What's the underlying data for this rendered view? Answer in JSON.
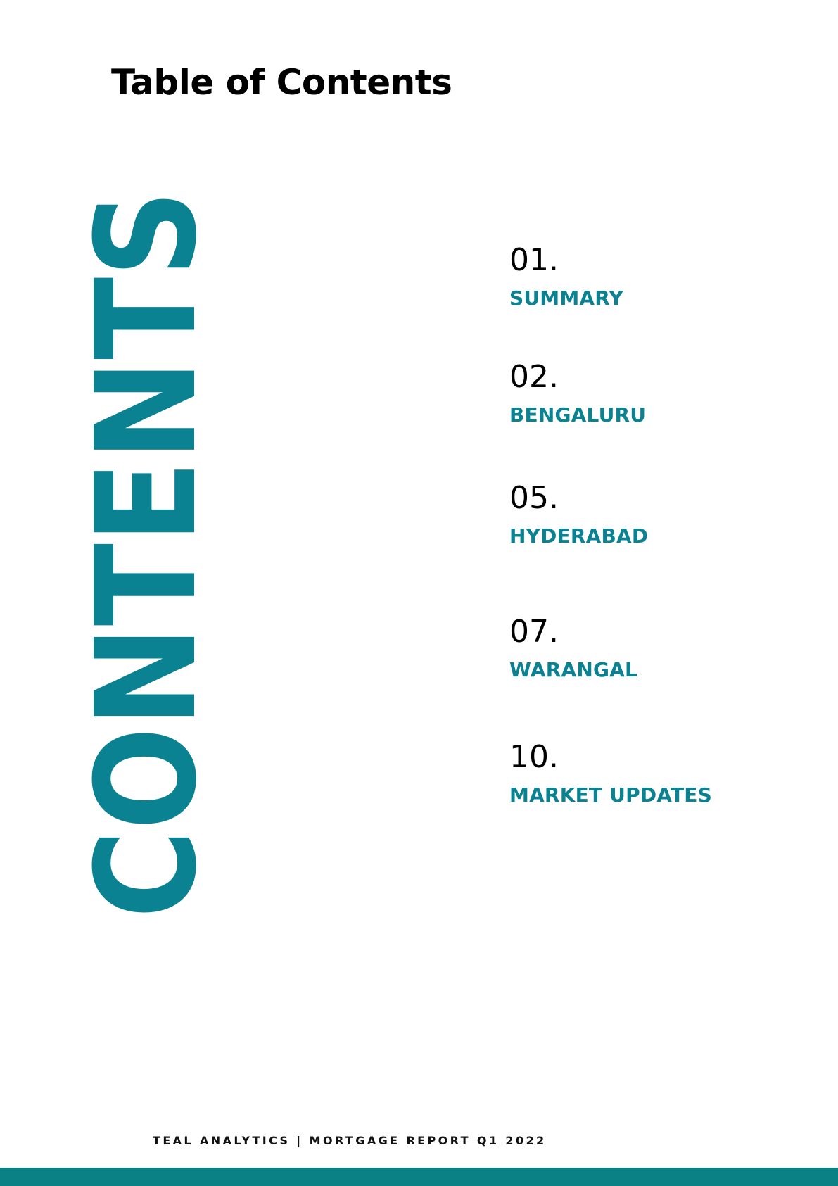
{
  "page": {
    "title": "Table of Contents",
    "vertical_word": "CONTENTS"
  },
  "toc": [
    {
      "number": "01.",
      "label": "SUMMARY"
    },
    {
      "number": "02.",
      "label": "BENGALURU"
    },
    {
      "number": "05.",
      "label": "HYDERABAD"
    },
    {
      "number": "07.",
      "label": "WARANGAL"
    },
    {
      "number": "10.",
      "label": "MARKET UPDATES"
    }
  ],
  "footer": {
    "text": "TEAL ANALYTICS | MORTGAGE REPORT Q1 2022"
  },
  "colors": {
    "accent_teal": "#0a8291",
    "footer_bar": "#0a8285",
    "text_dark": "#000000",
    "background": "#ffffff"
  }
}
